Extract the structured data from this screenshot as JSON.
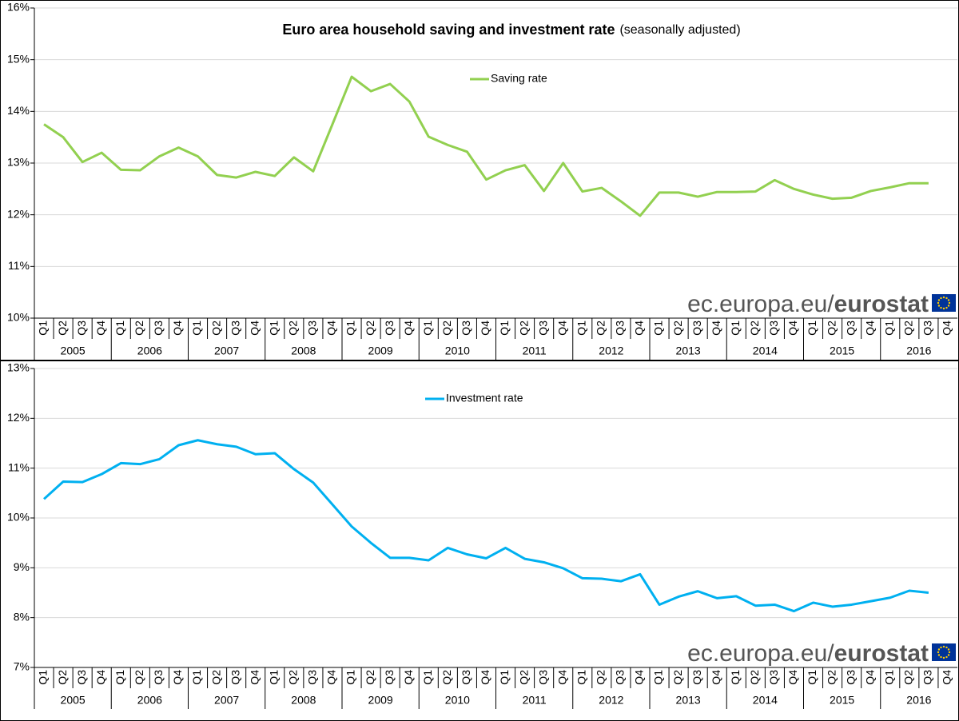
{
  "chart_data": [
    {
      "type": "line",
      "title": "Euro area household saving and investment rate",
      "subtitle": "(seasonally adjusted)",
      "watermark_site": "ec.europa.eu/",
      "watermark_brand": "eurostat",
      "categories": [
        "Q1",
        "Q2",
        "Q3",
        "Q4",
        "Q1",
        "Q2",
        "Q3",
        "Q4",
        "Q1",
        "Q2",
        "Q3",
        "Q4",
        "Q1",
        "Q2",
        "Q3",
        "Q4",
        "Q1",
        "Q2",
        "Q3",
        "Q4",
        "Q1",
        "Q2",
        "Q3",
        "Q4",
        "Q1",
        "Q2",
        "Q3",
        "Q4",
        "Q1",
        "Q2",
        "Q3",
        "Q4",
        "Q1",
        "Q2",
        "Q3",
        "Q4",
        "Q1",
        "Q2",
        "Q3",
        "Q4",
        "Q1",
        "Q2",
        "Q3",
        "Q4",
        "Q1",
        "Q2",
        "Q3",
        "Q4"
      ],
      "years": [
        "2005",
        "2006",
        "2007",
        "2008",
        "2009",
        "2010",
        "2011",
        "2012",
        "2013",
        "2014",
        "2015",
        "2016"
      ],
      "series": [
        {
          "name": "Saving rate",
          "color": "#92d050",
          "values": [
            13.75,
            13.5,
            13.02,
            13.2,
            12.87,
            12.86,
            13.13,
            13.3,
            13.13,
            12.77,
            12.72,
            12.83,
            12.75,
            13.11,
            12.84,
            13.75,
            14.67,
            14.39,
            14.53,
            14.19,
            13.51,
            13.35,
            13.22,
            12.68,
            12.86,
            12.96,
            12.46,
            13.0,
            12.45,
            12.52,
            12.26,
            11.98,
            12.43,
            12.43,
            12.35,
            12.44,
            12.44,
            12.45,
            12.67,
            12.5,
            12.39,
            12.31,
            12.33,
            12.46,
            12.53,
            12.61,
            12.61,
            null
          ]
        }
      ],
      "ylim": [
        10,
        16
      ],
      "yticks": [
        {
          "value": 10,
          "label": "10%"
        },
        {
          "value": 11,
          "label": "11%"
        },
        {
          "value": 12,
          "label": "12%"
        },
        {
          "value": 13,
          "label": "13%"
        },
        {
          "value": 14,
          "label": "14%"
        },
        {
          "value": 15,
          "label": "15%"
        },
        {
          "value": 16,
          "label": "16%"
        }
      ],
      "grid": true,
      "legend": "top"
    },
    {
      "type": "line",
      "watermark_site": "ec.europa.eu/",
      "watermark_brand": "eurostat",
      "categories": [
        "Q1",
        "Q2",
        "Q3",
        "Q4",
        "Q1",
        "Q2",
        "Q3",
        "Q4",
        "Q1",
        "Q2",
        "Q3",
        "Q4",
        "Q1",
        "Q2",
        "Q3",
        "Q4",
        "Q1",
        "Q2",
        "Q3",
        "Q4",
        "Q1",
        "Q2",
        "Q3",
        "Q4",
        "Q1",
        "Q2",
        "Q3",
        "Q4",
        "Q1",
        "Q2",
        "Q3",
        "Q4",
        "Q1",
        "Q2",
        "Q3",
        "Q4",
        "Q1",
        "Q2",
        "Q3",
        "Q4",
        "Q1",
        "Q2",
        "Q3",
        "Q4",
        "Q1",
        "Q2",
        "Q3",
        "Q4"
      ],
      "years": [
        "2005",
        "2006",
        "2007",
        "2008",
        "2009",
        "2010",
        "2011",
        "2012",
        "2013",
        "2014",
        "2015",
        "2016"
      ],
      "series": [
        {
          "name": "Investment rate",
          "color": "#00b0f0",
          "values": [
            10.38,
            10.73,
            10.72,
            10.88,
            11.1,
            11.08,
            11.18,
            11.46,
            11.56,
            11.48,
            11.43,
            11.28,
            11.3,
            10.98,
            10.71,
            10.27,
            9.83,
            9.5,
            9.2,
            9.2,
            9.15,
            9.4,
            9.27,
            9.19,
            9.4,
            9.18,
            9.11,
            8.99,
            8.79,
            8.78,
            8.73,
            8.87,
            8.26,
            8.42,
            8.53,
            8.39,
            8.43,
            8.24,
            8.26,
            8.13,
            8.3,
            8.22,
            8.26,
            8.33,
            8.4,
            8.54,
            8.5,
            null
          ]
        }
      ],
      "ylim": [
        7,
        13
      ],
      "yticks": [
        {
          "value": 7,
          "label": "7%"
        },
        {
          "value": 8,
          "label": "8%"
        },
        {
          "value": 9,
          "label": "9%"
        },
        {
          "value": 10,
          "label": "10%"
        },
        {
          "value": 11,
          "label": "11%"
        },
        {
          "value": 12,
          "label": "12%"
        },
        {
          "value": 13,
          "label": "13%"
        }
      ],
      "grid": true,
      "legend": "top"
    }
  ]
}
